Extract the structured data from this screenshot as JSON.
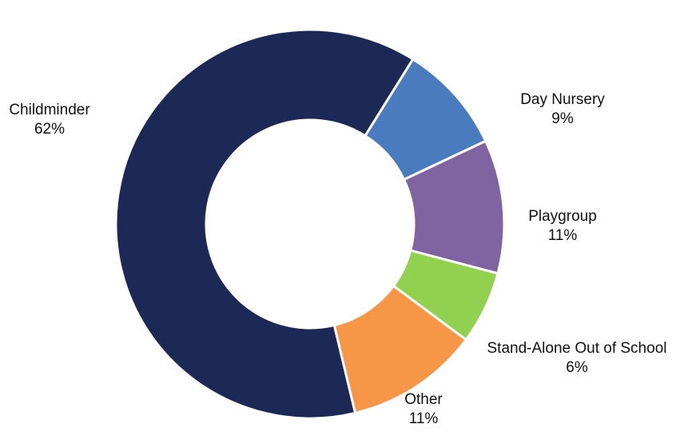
{
  "chart_data": {
    "type": "donut",
    "categories": [
      "Day Nursery",
      "Playgroup",
      "Stand-Alone Out of School",
      "Other",
      "Childminder"
    ],
    "values": [
      9,
      11,
      6,
      11,
      62
    ],
    "value_labels": [
      "9%",
      "11%",
      "6%",
      "11%",
      "62%"
    ],
    "colors": [
      "#4a7bbf",
      "#8064a2",
      "#92d050",
      "#f79646",
      "#1c2957"
    ]
  }
}
